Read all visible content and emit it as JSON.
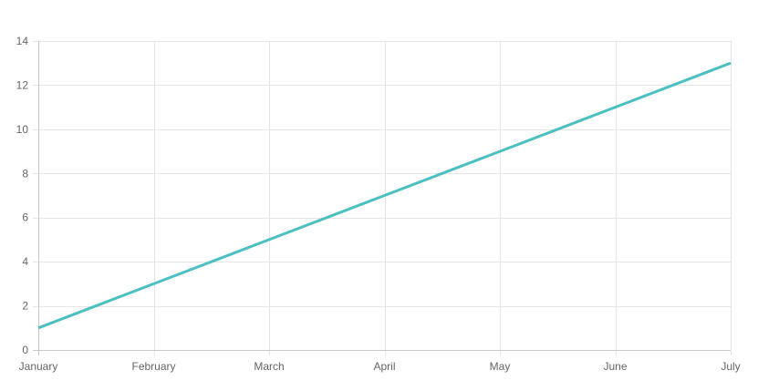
{
  "chart_data": {
    "type": "line",
    "title": "",
    "xlabel": "",
    "ylabel": "",
    "categories": [
      "January",
      "February",
      "March",
      "April",
      "May",
      "June",
      "July"
    ],
    "series": [
      {
        "values": [
          1,
          3,
          5,
          7,
          9,
          11,
          13
        ],
        "color": "#4bc0c0"
      }
    ],
    "ylim": [
      0,
      14
    ],
    "y_ticks": [
      0,
      2,
      4,
      6,
      8,
      10,
      12,
      14
    ],
    "y_tick_labels": [
      "0",
      "2",
      "4",
      "6",
      "8",
      "10",
      "12",
      "14"
    ],
    "grid": true,
    "legend": "none",
    "colors": {
      "grid": "#e6e6e6",
      "axis": "#c8c8c8",
      "tick_label": "#666666"
    }
  }
}
